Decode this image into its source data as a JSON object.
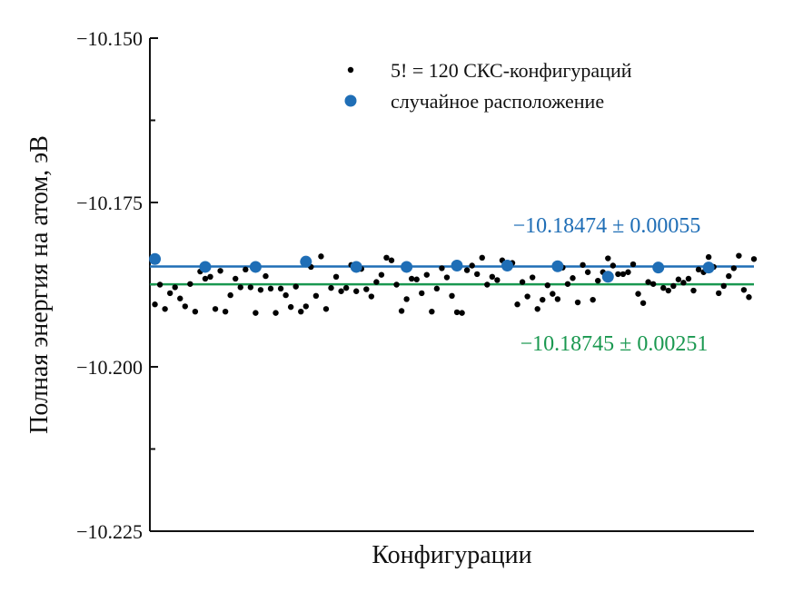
{
  "chart_data": {
    "type": "scatter",
    "xlabel": "Конфигурации",
    "ylabel": "Полная энергия на атом, эВ",
    "ylim": [
      -10.225,
      -10.15
    ],
    "yticks": [
      -10.15,
      -10.175,
      -10.2,
      -10.225
    ],
    "ytick_labels": [
      "−10.150",
      "−10.175",
      "−10.200",
      "−10.225"
    ],
    "xlim": [
      0,
      120
    ],
    "grid": false,
    "legend_position": "top-right",
    "colors": {
      "series1": "#000000",
      "series2": "#1f6eb6",
      "line1": "#1f6eb6",
      "line2": "#1a9850"
    },
    "series": [
      {
        "name": "5! = 120 СКС-конфигураций",
        "color": "#000000",
        "marker": "small-dot",
        "x": [
          1,
          2,
          3,
          4,
          5,
          6,
          7,
          8,
          9,
          10,
          11,
          12,
          13,
          14,
          15,
          16,
          17,
          18,
          19,
          20,
          21,
          22,
          23,
          24,
          25,
          26,
          27,
          28,
          29,
          30,
          31,
          32,
          33,
          34,
          35,
          36,
          37,
          38,
          39,
          40,
          41,
          42,
          43,
          44,
          45,
          46,
          47,
          48,
          49,
          50,
          51,
          52,
          53,
          54,
          55,
          56,
          57,
          58,
          59,
          60,
          61,
          62,
          63,
          64,
          65,
          66,
          67,
          68,
          69,
          70,
          71,
          72,
          73,
          74,
          75,
          76,
          77,
          78,
          79,
          80,
          81,
          82,
          83,
          84,
          85,
          86,
          87,
          88,
          89,
          90,
          91,
          92,
          93,
          94,
          95,
          96,
          97,
          98,
          99,
          100,
          101,
          102,
          103,
          104,
          105,
          106,
          107,
          108,
          109,
          110,
          111,
          112,
          113,
          114,
          115,
          116,
          117,
          118,
          119,
          120
        ],
        "y": [
          -10.1905,
          -10.1875,
          -10.1912,
          -10.1888,
          -10.1879,
          -10.1896,
          -10.1908,
          -10.1874,
          -10.1916,
          -10.1855,
          -10.1866,
          -10.1863,
          -10.1912,
          -10.1854,
          -10.1916,
          -10.1891,
          -10.1866,
          -10.1879,
          -10.1852,
          -10.1879,
          -10.1918,
          -10.1883,
          -10.1862,
          -10.1881,
          -10.1918,
          -10.1881,
          -10.1891,
          -10.1909,
          -10.1878,
          -10.1916,
          -10.1908,
          -10.1848,
          -10.1892,
          -10.1832,
          -10.1912,
          -10.188,
          -10.1863,
          -10.1885,
          -10.188,
          -10.1845,
          -10.1885,
          -10.1851,
          -10.1882,
          -10.1893,
          -10.1871,
          -10.186,
          -10.1834,
          -10.1838,
          -10.1875,
          -10.1915,
          -10.1897,
          -10.1866,
          -10.1867,
          -10.1888,
          -10.186,
          -10.1916,
          -10.1881,
          -10.185,
          -10.1864,
          -10.1892,
          -10.1917,
          -10.1918,
          -10.1853,
          -10.1846,
          -10.1859,
          -10.1834,
          -10.1875,
          -10.1863,
          -10.1868,
          -10.1838,
          -10.1847,
          -10.1842,
          -10.1905,
          -10.1871,
          -10.1893,
          -10.1864,
          -10.1912,
          -10.1898,
          -10.1876,
          -10.1889,
          -10.1897,
          -10.1849,
          -10.1874,
          -10.1865,
          -10.1902,
          -10.1845,
          -10.1856,
          -10.1898,
          -10.1869,
          -10.1856,
          -10.1835,
          -10.1846,
          -10.1859,
          -10.1859,
          -10.1856,
          -10.1844,
          -10.1889,
          -10.1903,
          -10.1871,
          -10.1874,
          -10.1845,
          -10.188,
          -10.1884,
          -10.1877,
          -10.1867,
          -10.1872,
          -10.1866,
          -10.1884,
          -10.1852,
          -10.1856,
          -10.1833,
          -10.1848,
          -10.1888,
          -10.1877,
          -10.1862,
          -10.185,
          -10.1831,
          -10.1883,
          -10.1894,
          -10.1836
        ]
      },
      {
        "name": "случайное расположение",
        "color": "#1f6eb6",
        "marker": "large-dot",
        "x": [
          1,
          11,
          21,
          31,
          41,
          51,
          61,
          71,
          81,
          91,
          101,
          111
        ],
        "y": [
          -10.1836,
          -10.1848,
          -10.1848,
          -10.184,
          -10.1848,
          -10.1848,
          -10.1846,
          -10.1846,
          -10.1847,
          -10.1863,
          -10.1849,
          -10.1849
        ]
      }
    ],
    "lines": [
      {
        "label": "−10.18474 ± 0.00055",
        "y": -10.18474,
        "color": "#1f6eb6"
      },
      {
        "label": "−10.18745 ± 0.00251",
        "y": -10.18745,
        "color": "#1a9850"
      }
    ]
  }
}
